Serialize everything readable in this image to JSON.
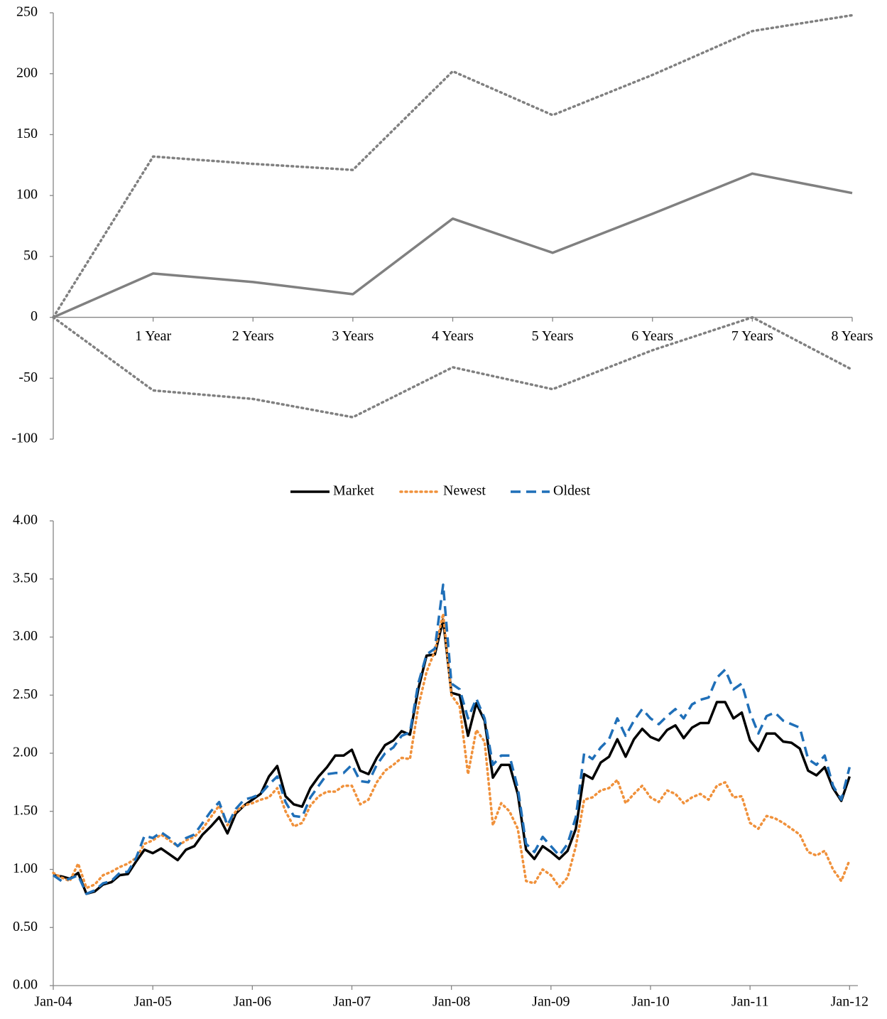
{
  "chart_data": [
    {
      "type": "line",
      "categories": [
        null,
        "1 Year",
        "2 Years",
        "3 Years",
        "4 Years",
        "5 Years",
        "6 Years",
        "7 Years",
        "8 Years"
      ],
      "series": [
        {
          "color": "#808080",
          "line_style": "solid",
          "values": [
            0,
            36,
            29,
            19,
            81,
            53,
            85,
            118,
            102
          ]
        },
        {
          "color": "#808080",
          "line_style": "dotted",
          "values": [
            0,
            132,
            126,
            121,
            202,
            166,
            199,
            235,
            248
          ]
        },
        {
          "color": "#808080",
          "line_style": "dotted",
          "values": [
            0,
            -60,
            -67,
            -82,
            -41,
            -59,
            -27,
            0,
            -43
          ]
        }
      ],
      "ylim": [
        -100,
        250
      ],
      "yticks": [
        -100,
        -50,
        0,
        50,
        100,
        150,
        200,
        250
      ],
      "grid": false
    },
    {
      "type": "line",
      "x": [
        "2004-01",
        "2004-02",
        "2004-03",
        "2004-04",
        "2004-05",
        "2004-06",
        "2004-07",
        "2004-08",
        "2004-09",
        "2004-10",
        "2004-11",
        "2004-12",
        "2005-01",
        "2005-02",
        "2005-03",
        "2005-04",
        "2005-05",
        "2005-06",
        "2005-07",
        "2005-08",
        "2005-09",
        "2005-10",
        "2005-11",
        "2005-12",
        "2006-01",
        "2006-02",
        "2006-03",
        "2006-04",
        "2006-05",
        "2006-06",
        "2006-07",
        "2006-08",
        "2006-09",
        "2006-10",
        "2006-11",
        "2006-12",
        "2007-01",
        "2007-02",
        "2007-03",
        "2007-04",
        "2007-05",
        "2007-06",
        "2007-07",
        "2007-08",
        "2007-09",
        "2007-10",
        "2007-11",
        "2007-12",
        "2008-01",
        "2008-02",
        "2008-03",
        "2008-04",
        "2008-05",
        "2008-06",
        "2008-07",
        "2008-08",
        "2008-09",
        "2008-10",
        "2008-11",
        "2008-12",
        "2009-01",
        "2009-02",
        "2009-03",
        "2009-04",
        "2009-05",
        "2009-06",
        "2009-07",
        "2009-08",
        "2009-09",
        "2009-10",
        "2009-11",
        "2009-12",
        "2010-01",
        "2010-02",
        "2010-03",
        "2010-04",
        "2010-05",
        "2010-06",
        "2010-07",
        "2010-08",
        "2010-09",
        "2010-10",
        "2010-11",
        "2010-12",
        "2011-01",
        "2011-02",
        "2011-03",
        "2011-04",
        "2011-05",
        "2011-06",
        "2011-07",
        "2011-08",
        "2011-09",
        "2011-10",
        "2011-11",
        "2011-12",
        "2012-01"
      ],
      "series": [
        {
          "name": "Market",
          "color": "#000000",
          "line_style": "solid",
          "values": [
            0.95,
            0.94,
            0.92,
            0.97,
            0.79,
            0.81,
            0.87,
            0.89,
            0.95,
            0.96,
            1.07,
            1.17,
            1.14,
            1.18,
            1.13,
            1.08,
            1.17,
            1.2,
            1.3,
            1.37,
            1.45,
            1.31,
            1.48,
            1.55,
            1.6,
            1.65,
            1.8,
            1.89,
            1.63,
            1.56,
            1.54,
            1.7,
            1.8,
            1.88,
            1.98,
            1.98,
            2.03,
            1.85,
            1.82,
            1.96,
            2.07,
            2.11,
            2.19,
            2.16,
            2.55,
            2.84,
            2.85,
            3.15,
            2.52,
            2.5,
            2.15,
            2.43,
            2.28,
            1.79,
            1.9,
            1.9,
            1.65,
            1.17,
            1.09,
            1.2,
            1.15,
            1.09,
            1.16,
            1.35,
            1.82,
            1.78,
            1.92,
            1.97,
            2.12,
            1.97,
            2.12,
            2.21,
            2.14,
            2.11,
            2.2,
            2.24,
            2.13,
            2.22,
            2.26,
            2.26,
            2.44,
            2.44,
            2.3,
            2.35,
            2.11,
            2.02,
            2.17,
            2.17,
            2.1,
            2.09,
            2.04,
            1.85,
            1.81,
            1.88,
            1.7,
            1.59,
            1.8
          ]
        },
        {
          "name": "Newest",
          "color": "#f0913b",
          "line_style": "dotted",
          "values": [
            0.97,
            0.93,
            0.9,
            1.05,
            0.84,
            0.87,
            0.95,
            0.98,
            1.02,
            1.05,
            1.1,
            1.22,
            1.25,
            1.3,
            1.25,
            1.2,
            1.25,
            1.28,
            1.35,
            1.45,
            1.55,
            1.38,
            1.5,
            1.55,
            1.57,
            1.6,
            1.62,
            1.7,
            1.5,
            1.37,
            1.4,
            1.55,
            1.63,
            1.67,
            1.67,
            1.72,
            1.72,
            1.56,
            1.6,
            1.75,
            1.85,
            1.9,
            1.96,
            1.95,
            2.4,
            2.7,
            2.88,
            3.2,
            2.5,
            2.4,
            1.82,
            2.2,
            2.1,
            1.38,
            1.57,
            1.5,
            1.35,
            0.9,
            0.88,
            1.0,
            0.95,
            0.85,
            0.93,
            1.2,
            1.6,
            1.62,
            1.68,
            1.7,
            1.77,
            1.57,
            1.65,
            1.72,
            1.62,
            1.58,
            1.68,
            1.65,
            1.57,
            1.62,
            1.65,
            1.6,
            1.72,
            1.75,
            1.62,
            1.63,
            1.4,
            1.35,
            1.46,
            1.44,
            1.4,
            1.35,
            1.3,
            1.15,
            1.12,
            1.16,
            1.0,
            0.9,
            1.08
          ]
        },
        {
          "name": "Oldest",
          "color": "#1f6fb8",
          "line_style": "dashed",
          "values": [
            0.95,
            0.9,
            0.92,
            0.95,
            0.79,
            0.82,
            0.88,
            0.9,
            0.97,
            0.98,
            1.1,
            1.29,
            1.27,
            1.32,
            1.27,
            1.2,
            1.27,
            1.3,
            1.4,
            1.5,
            1.58,
            1.38,
            1.52,
            1.6,
            1.62,
            1.65,
            1.73,
            1.8,
            1.58,
            1.46,
            1.45,
            1.62,
            1.72,
            1.82,
            1.83,
            1.83,
            1.9,
            1.76,
            1.75,
            1.9,
            2.0,
            2.05,
            2.15,
            2.18,
            2.6,
            2.85,
            2.9,
            3.45,
            2.6,
            2.55,
            2.3,
            2.47,
            2.3,
            1.9,
            1.98,
            1.98,
            1.7,
            1.22,
            1.15,
            1.28,
            1.2,
            1.12,
            1.22,
            1.45,
            2.0,
            1.95,
            2.05,
            2.12,
            2.3,
            2.15,
            2.28,
            2.38,
            2.3,
            2.25,
            2.32,
            2.38,
            2.3,
            2.42,
            2.46,
            2.48,
            2.65,
            2.72,
            2.55,
            2.6,
            2.35,
            2.17,
            2.32,
            2.35,
            2.28,
            2.25,
            2.22,
            1.95,
            1.9,
            1.98,
            1.72,
            1.6,
            1.88
          ]
        }
      ],
      "xlim": [
        "2004-01",
        "2012-02"
      ],
      "xticks": [
        {
          "value": "2004-01",
          "label": "Jan-04"
        },
        {
          "value": "2005-01",
          "label": "Jan-05"
        },
        {
          "value": "2006-01",
          "label": "Jan-06"
        },
        {
          "value": "2007-01",
          "label": "Jan-07"
        },
        {
          "value": "2008-01",
          "label": "Jan-08"
        },
        {
          "value": "2009-01",
          "label": "Jan-09"
        },
        {
          "value": "2010-01",
          "label": "Jan-10"
        },
        {
          "value": "2011-01",
          "label": "Jan-11"
        },
        {
          "value": "2012-01",
          "label": "Jan-12"
        }
      ],
      "ylim": [
        0,
        4
      ],
      "yticks": [
        {
          "value": 0,
          "label": "0.00"
        },
        {
          "value": 0.5,
          "label": "0.50"
        },
        {
          "value": 1,
          "label": "1.00"
        },
        {
          "value": 1.5,
          "label": "1.50"
        },
        {
          "value": 2,
          "label": "2.00"
        },
        {
          "value": 2.5,
          "label": "2.50"
        },
        {
          "value": 3,
          "label": "3.00"
        },
        {
          "value": 3.5,
          "label": "3.50"
        },
        {
          "value": 4,
          "label": "4.00"
        }
      ],
      "grid": false,
      "legend": "top"
    }
  ]
}
